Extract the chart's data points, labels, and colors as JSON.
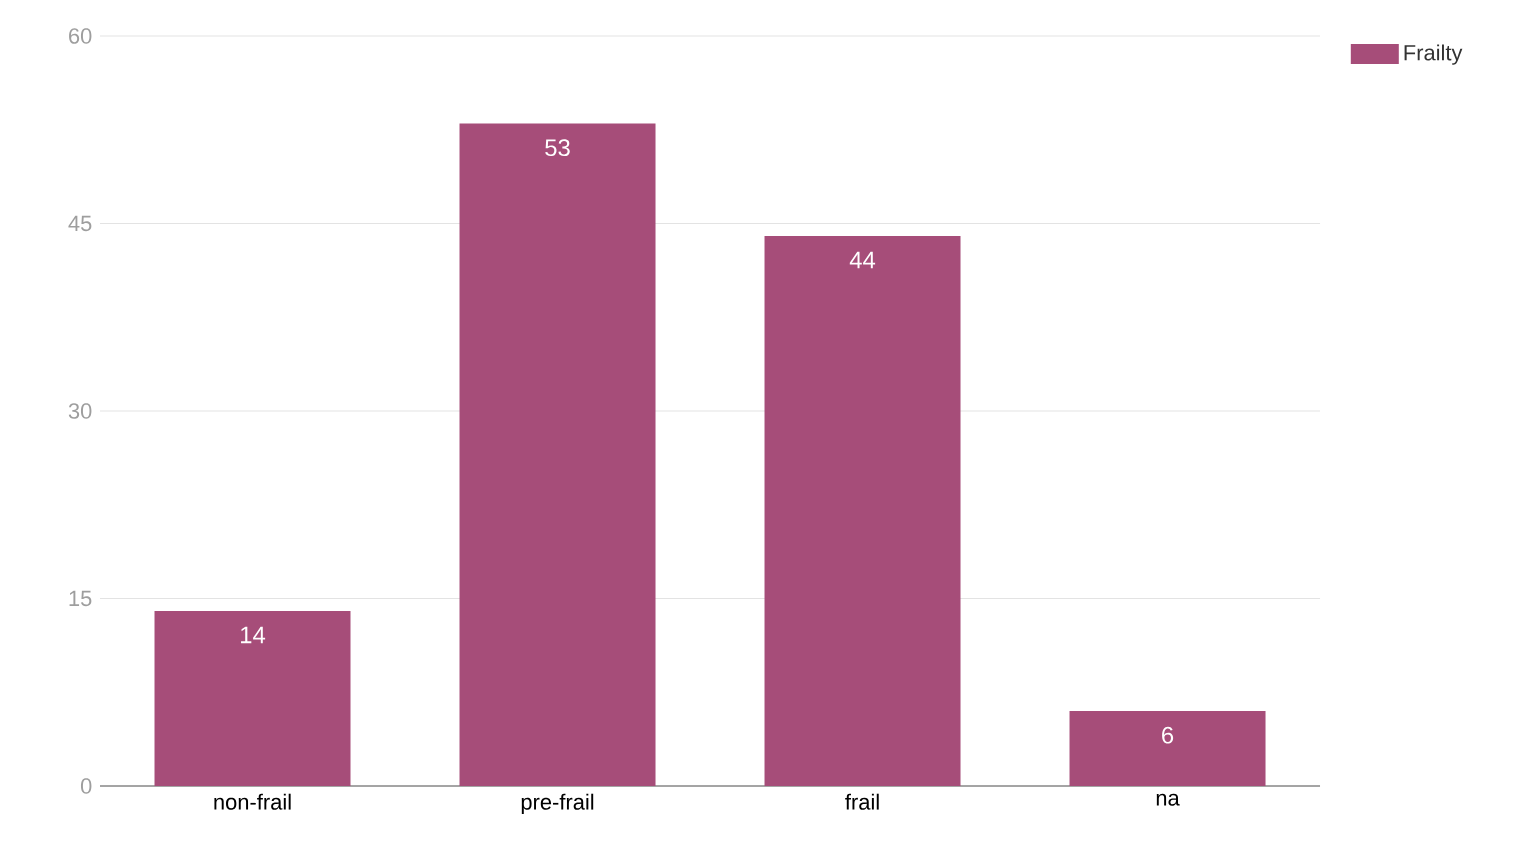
{
  "chart_data": {
    "type": "bar",
    "categories": [
      "non-frail",
      "pre-frail",
      "frail",
      "na"
    ],
    "series": [
      {
        "name": "Frailty",
        "color": "#a64d79",
        "values": [
          14,
          53,
          44,
          6
        ]
      }
    ],
    "ylim": [
      0,
      60
    ],
    "yticks": [
      0,
      15,
      30,
      45,
      60
    ],
    "grid": "y",
    "legend": "top right",
    "data_labels": true
  }
}
